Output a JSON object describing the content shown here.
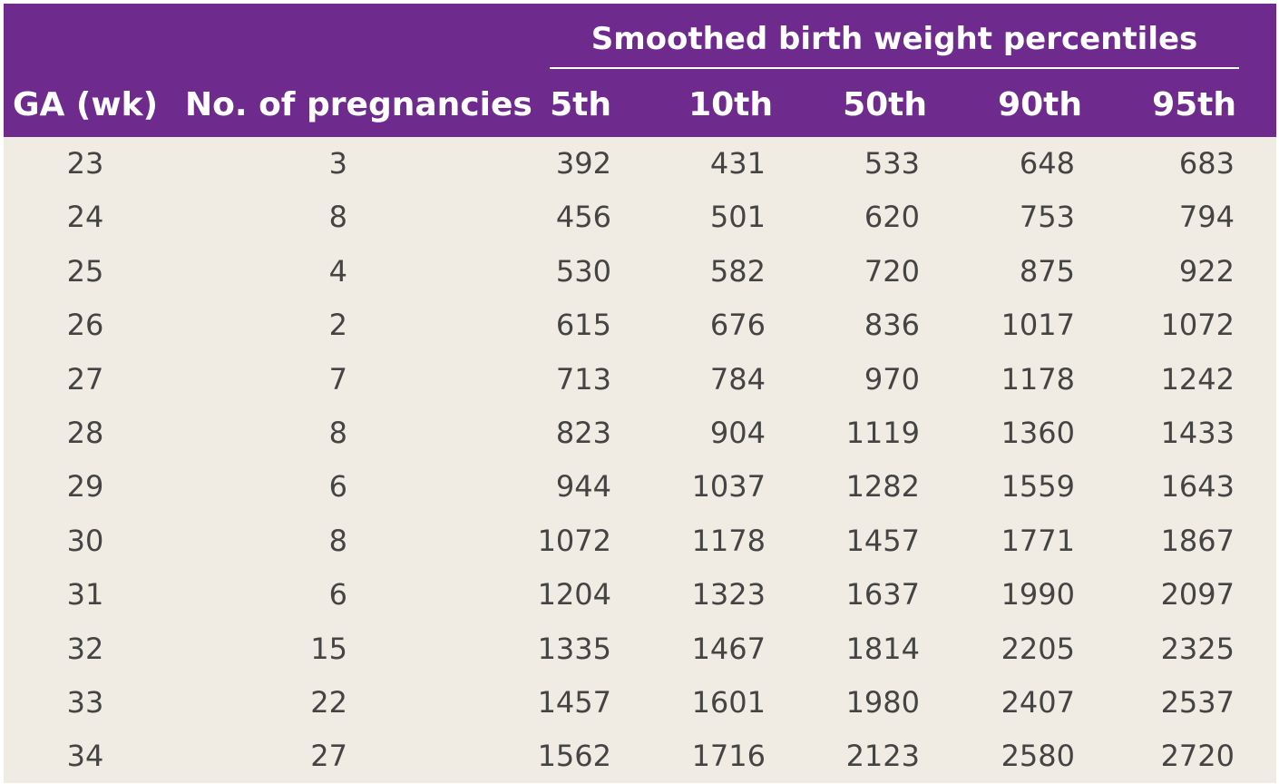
{
  "table": {
    "spanner": "Smoothed birth weight percentiles",
    "headers": {
      "ga": "GA (wk)",
      "pregnancies": "No. of pregnancies",
      "p5": "5th",
      "p10": "10th",
      "p50": "50th",
      "p90": "90th",
      "p95": "95th"
    },
    "rows": [
      [
        "23",
        "3",
        "392",
        "431",
        "533",
        "648",
        "683"
      ],
      [
        "24",
        "8",
        "456",
        "501",
        "620",
        "753",
        "794"
      ],
      [
        "25",
        "4",
        "530",
        "582",
        "720",
        "875",
        "922"
      ],
      [
        "26",
        "2",
        "615",
        "676",
        "836",
        "1017",
        "1072"
      ],
      [
        "27",
        "7",
        "713",
        "784",
        "970",
        "1178",
        "1242"
      ],
      [
        "28",
        "8",
        "823",
        "904",
        "1119",
        "1360",
        "1433"
      ],
      [
        "29",
        "6",
        "944",
        "1037",
        "1282",
        "1559",
        "1643"
      ],
      [
        "30",
        "8",
        "1072",
        "1178",
        "1457",
        "1771",
        "1867"
      ],
      [
        "31",
        "6",
        "1204",
        "1323",
        "1637",
        "1990",
        "2097"
      ],
      [
        "32",
        "15",
        "1335",
        "1467",
        "1814",
        "2205",
        "2325"
      ],
      [
        "33",
        "22",
        "1457",
        "1601",
        "1980",
        "2407",
        "2537"
      ],
      [
        "34",
        "27",
        "1562",
        "1716",
        "2123",
        "2580",
        "2720"
      ]
    ]
  },
  "colors": {
    "header_bg": "#6f2a8e",
    "header_text": "#ffffff",
    "body_bg": "#f0ece3",
    "body_text": "#444444"
  }
}
